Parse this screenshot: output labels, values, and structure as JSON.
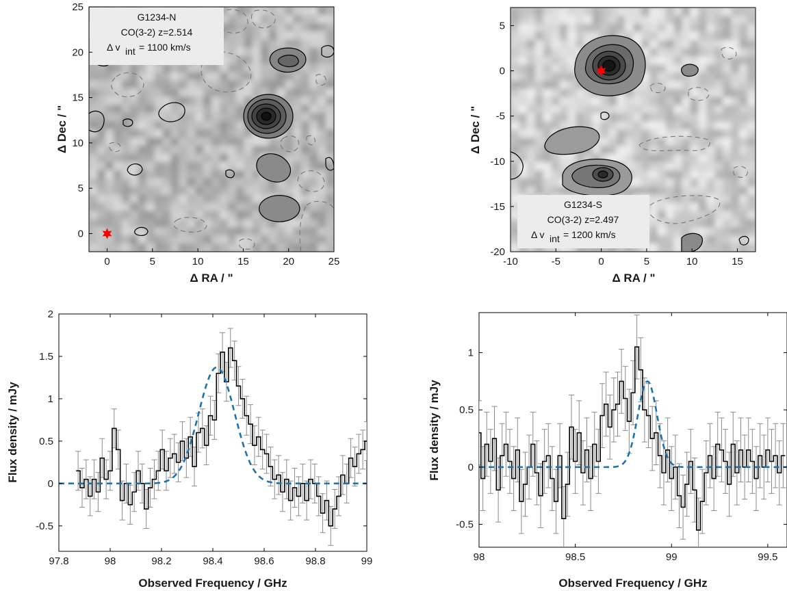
{
  "chart_data": [
    {
      "id": "map-n",
      "type": "heatmap",
      "title": "G1234-N",
      "annotations": [
        "G1234-N",
        "CO(3-2) z=2.514",
        "int",
        "Δ v",
        "= 1100 km/s"
      ],
      "xlabel": "Δ RA / \"",
      "ylabel": "Δ Dec / \"",
      "xlim": [
        -2,
        25
      ],
      "ylim": [
        -2,
        25
      ],
      "xticks": [
        0,
        5,
        10,
        15,
        20,
        25
      ],
      "yticks": [
        0,
        5,
        10,
        15,
        20,
        25
      ],
      "sources": [
        {
          "x": 17.5,
          "y": 12.8,
          "label": "CO peak"
        },
        {
          "x": 0,
          "y": 0,
          "label": "star marker"
        }
      ]
    },
    {
      "id": "map-s",
      "type": "heatmap",
      "title": "G1234-S",
      "annotations": [
        "G1234-S",
        "CO(3-2) z=2.497",
        "int",
        "Δ v",
        "= 1200 km/s"
      ],
      "xlabel": "Δ RA / \"",
      "ylabel": "Δ Dec / \"",
      "xlim": [
        -10,
        17
      ],
      "ylim": [
        -20,
        7
      ],
      "xticks": [
        -10,
        -5,
        0,
        5,
        10,
        15
      ],
      "yticks": [
        -20,
        -15,
        -10,
        -5,
        0,
        5
      ],
      "sources": [
        {
          "x": 0.5,
          "y": 0.2,
          "label": "CO peak"
        },
        {
          "x": 4.3,
          "y": -11.5,
          "label": "secondary peak"
        },
        {
          "x": 0,
          "y": 0,
          "label": "star marker"
        }
      ]
    },
    {
      "id": "spec-n",
      "type": "line",
      "xlabel": "Observed Frequency / GHz",
      "ylabel": "Flux density / mJy",
      "xlim": [
        97.8,
        99
      ],
      "ylim": [
        -0.8,
        2
      ],
      "xticks": [
        97.8,
        98,
        98.2,
        98.4,
        98.6,
        98.8,
        99
      ],
      "xticklabels": [
        "97.8",
        "98",
        "98.2",
        "98.4",
        "98.6",
        "98.8",
        "99"
      ],
      "yticks": [
        -0.5,
        0,
        0.5,
        1,
        1.5,
        2
      ],
      "yticklabels": [
        "-0.5",
        "0",
        "0.5",
        "1",
        "1.5",
        "2"
      ],
      "series": [
        {
          "style": "step-with-errorbars",
          "x0": 97.875,
          "dx": 0.015625,
          "values": [
            0.15,
            -0.05,
            0.05,
            -0.15,
            0.05,
            -0.1,
            0.3,
            0.05,
            0.15,
            0.65,
            0.4,
            -0.2,
            0.0,
            -0.25,
            -0.1,
            0.15,
            0.0,
            -0.3,
            -0.05,
            0.05,
            0.15,
            0.4,
            0.15,
            0.3,
            0.35,
            0.25,
            0.5,
            0.3,
            0.55,
            0.2,
            0.6,
            0.65,
            0.45,
            0.8,
            0.75,
            1.3,
            1.55,
            1.2,
            1.6,
            1.45,
            1.15,
            1.0,
            0.8,
            0.7,
            0.45,
            0.55,
            0.4,
            0.35,
            0.2,
            0.05,
            0.1,
            -0.1,
            0.05,
            -0.2,
            -0.05,
            -0.15,
            0.0,
            -0.2,
            0.05,
            0.0,
            -0.15,
            -0.35,
            -0.2,
            -0.5,
            -0.3,
            -0.15,
            0.1,
            0.0,
            0.3,
            0.2,
            0.35,
            0.4,
            0.5,
            0.45,
            0.35,
            0.3,
            0.15
          ],
          "error": 0.23
        },
        {
          "style": "dashed-gaussian-fit",
          "amplitude": 1.37,
          "center": 98.415,
          "sigma": 0.07
        }
      ]
    },
    {
      "id": "spec-s",
      "type": "line",
      "xlabel": "Observed Frequency / GHz",
      "ylabel": "Flux density / mJy",
      "xlim": [
        98,
        99.6
      ],
      "ylim": [
        -0.7,
        1.35
      ],
      "xticks": [
        98,
        98.5,
        99,
        99.5
      ],
      "xticklabels": [
        "98",
        "98.5",
        "99",
        "99.5"
      ],
      "yticks": [
        -0.5,
        0,
        0.5,
        1
      ],
      "yticklabels": [
        "-0.5",
        "0",
        "0.5",
        "1"
      ],
      "series": [
        {
          "style": "step-with-errorbars",
          "x0": 98.0,
          "dx": 0.02,
          "values": [
            0.3,
            -0.1,
            0.2,
            0.05,
            0.25,
            -0.2,
            0.1,
            0.2,
            0.05,
            -0.1,
            0.15,
            -0.3,
            -0.15,
            0.0,
            0.2,
            -0.05,
            -0.25,
            0.05,
            0.1,
            -0.1,
            -0.3,
            0.1,
            -0.45,
            -0.15,
            0.35,
            0.05,
            0.3,
            -0.05,
            0.15,
            -0.1,
            0.2,
            0.05,
            0.45,
            0.55,
            0.35,
            0.5,
            0.55,
            0.75,
            0.6,
            0.4,
            0.65,
            1.05,
            0.85,
            0.5,
            0.45,
            0.25,
            0.3,
            0.1,
            -0.05,
            0.15,
            -0.1,
            0.0,
            -0.25,
            -0.35,
            -0.15,
            0.05,
            -0.2,
            -0.55,
            -0.3,
            -0.05,
            0.1,
            -0.1,
            0.2,
            0.15,
            0.05,
            -0.15,
            0.2,
            -0.05,
            0.15,
            0.0,
            0.15,
            0.05,
            -0.1,
            0.1,
            0.0,
            0.15,
            0.05,
            0.1,
            -0.05,
            0.1
          ],
          "error": 0.28
        },
        {
          "style": "dashed-gaussian-fit",
          "amplitude": 0.75,
          "center": 98.875,
          "sigma": 0.05
        }
      ]
    }
  ]
}
